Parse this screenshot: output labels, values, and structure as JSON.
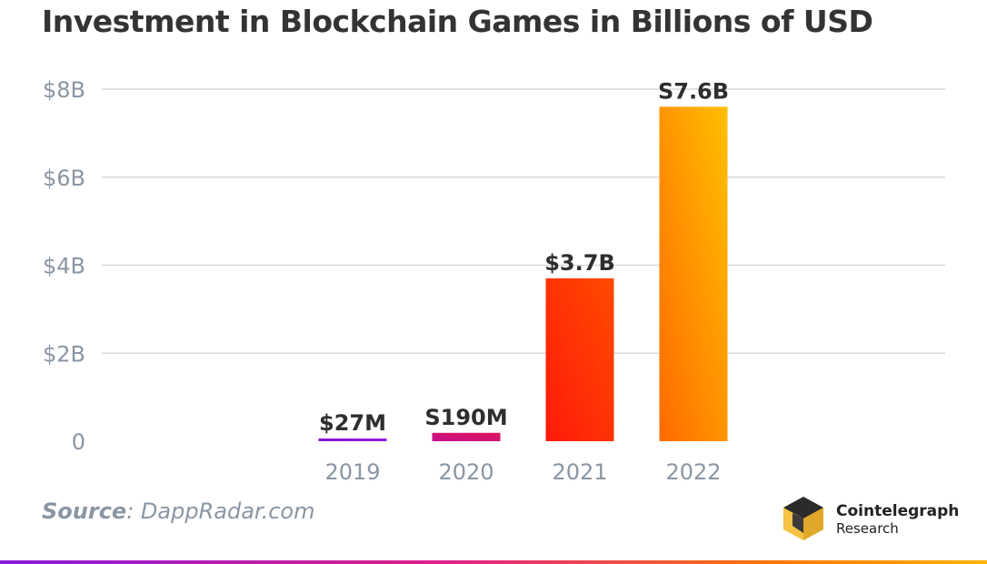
{
  "chart_data": {
    "type": "bar",
    "title": "Investment in Blockchain Games in Billions of USD",
    "categories": [
      "2019",
      "2020",
      "2021",
      "2022"
    ],
    "values": [
      0.027,
      0.19,
      3.7,
      7.6
    ],
    "data_labels": [
      "$27M",
      "S190M",
      "$3.7B",
      "S7.6B"
    ],
    "ylim": [
      0,
      8
    ],
    "yticks": [
      0,
      2,
      4,
      6,
      8
    ],
    "ytick_labels": [
      "0",
      "$2B",
      "$4B",
      "$6B",
      "$8B"
    ],
    "grid": true,
    "bar_colors": [
      [
        "#7a12d6",
        "#a020e0"
      ],
      [
        "#c4108a",
        "#e0145a"
      ],
      [
        "#ff1a0a",
        "#ff4a00"
      ],
      [
        "#ff6a00",
        "#ffbf00"
      ]
    ],
    "baseline_colors": [
      "#7a12d6",
      "#e0145a",
      "#ff6a00",
      "#ffbf00"
    ]
  },
  "source": {
    "label": "Source",
    "text": ": DappRadar.com"
  },
  "brand": {
    "name": "Cointelegraph",
    "sub": "Research"
  }
}
